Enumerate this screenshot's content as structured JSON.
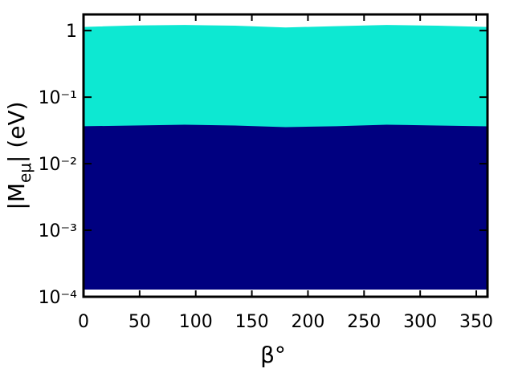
{
  "chart_data": {
    "type": "range_area",
    "xlabel": "β°",
    "ylabel": {
      "main": "|M",
      "sub": "eμ",
      "tail": "| (eV)"
    },
    "xlim": [
      0,
      360
    ],
    "xticks": [
      0,
      50,
      100,
      150,
      200,
      250,
      300,
      350
    ],
    "ylim": [
      0.0001,
      1.75
    ],
    "log_y": true,
    "yticks": [
      {
        "value": 1,
        "label": "1"
      },
      {
        "value": 0.1,
        "label": "10⁻¹"
      },
      {
        "value": 0.01,
        "label": "10⁻²"
      },
      {
        "value": 0.001,
        "label": "10⁻³"
      },
      {
        "value": 0.0001,
        "label": "10⁻⁴"
      }
    ],
    "x": [
      0,
      45,
      90,
      135,
      180,
      225,
      270,
      315,
      360
    ],
    "series": [
      {
        "color": "#0de8d2",
        "upper": [
          1.12,
          1.18,
          1.2,
          1.17,
          1.1,
          1.15,
          1.2,
          1.17,
          1.12
        ],
        "lower": [
          0.036,
          0.037,
          0.038,
          0.037,
          0.035,
          0.036,
          0.038,
          0.037,
          0.036
        ]
      },
      {
        "color": "#000080",
        "upper": [
          0.036,
          0.037,
          0.038,
          0.037,
          0.035,
          0.036,
          0.038,
          0.037,
          0.036
        ],
        "lower": [
          0.00013,
          0.00013,
          0.00013,
          0.00013,
          0.00013,
          0.00013,
          0.00013,
          0.00013,
          0.00013
        ]
      }
    ]
  }
}
